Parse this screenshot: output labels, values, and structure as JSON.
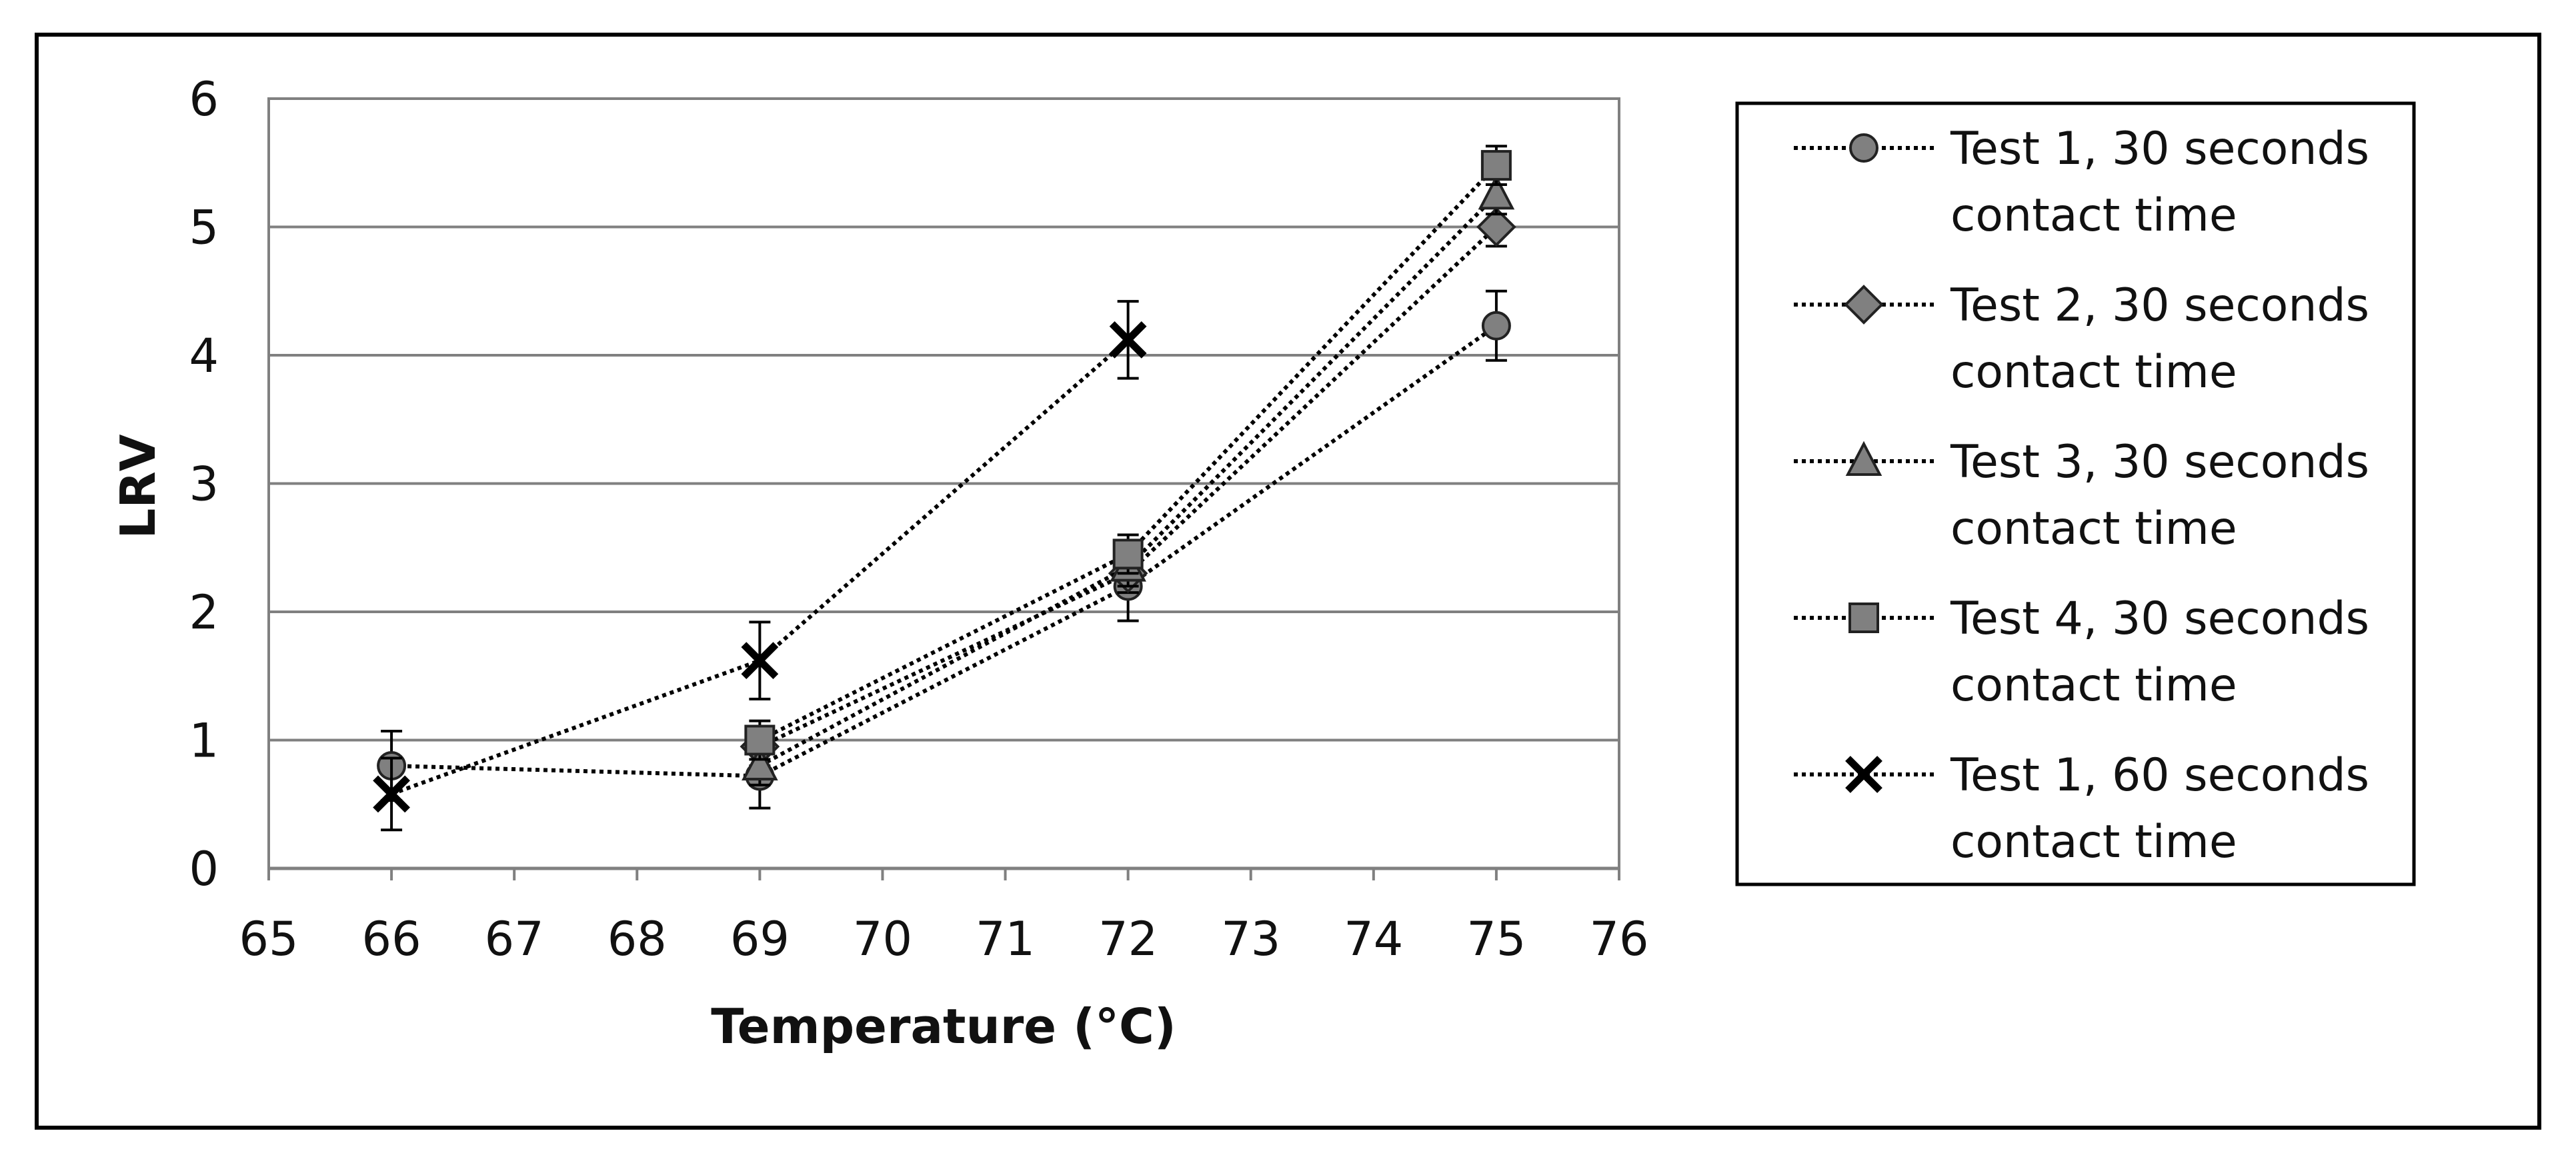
{
  "chart_data": {
    "type": "line",
    "title": "",
    "xlabel": "Temperature (°C)",
    "ylabel": "LRV",
    "xlim": [
      65,
      76
    ],
    "ylim": [
      0,
      6
    ],
    "x_ticks": [
      "65",
      "66",
      "67",
      "68",
      "69",
      "70",
      "71",
      "72",
      "73",
      "74",
      "75",
      "76"
    ],
    "y_ticks": [
      "0",
      "1",
      "2",
      "3",
      "4",
      "5",
      "6"
    ],
    "grid": "horizontal",
    "legend_position": "right",
    "series": [
      {
        "name_line1": "Test 1, 30 seconds",
        "name_line2": "contact time",
        "marker": "circle",
        "color": "#808080",
        "x": [
          66,
          69,
          72,
          75
        ],
        "values": [
          0.8,
          0.72,
          2.2,
          4.23
        ],
        "error": [
          0.27,
          0.25,
          0.27,
          0.27
        ]
      },
      {
        "name_line1": "Test 2, 30 seconds",
        "name_line2": "contact time",
        "marker": "diamond",
        "color": "#808080",
        "x": [
          69,
          72,
          75
        ],
        "values": [
          0.95,
          2.3,
          5.0
        ],
        "error": [
          0.15,
          0.15,
          0.15
        ]
      },
      {
        "name_line1": "Test 3, 30 seconds",
        "name_line2": "contact time",
        "marker": "triangle",
        "color": "#808080",
        "x": [
          69,
          72,
          75
        ],
        "values": [
          0.8,
          2.35,
          5.25
        ],
        "error": [
          0.15,
          0.15,
          0.15
        ]
      },
      {
        "name_line1": "Test 4, 30 seconds",
        "name_line2": "contact time",
        "marker": "square",
        "color": "#808080",
        "x": [
          69,
          72,
          75
        ],
        "values": [
          1.0,
          2.45,
          5.48
        ],
        "error": [
          0.15,
          0.15,
          0.15
        ]
      },
      {
        "name_line1": "Test 1, 60 seconds",
        "name_line2": "contact time",
        "marker": "x",
        "color": "#000000",
        "x": [
          66,
          69,
          72
        ],
        "values": [
          0.58,
          1.62,
          4.12
        ],
        "error": [
          0.28,
          0.3,
          0.3
        ]
      }
    ]
  }
}
